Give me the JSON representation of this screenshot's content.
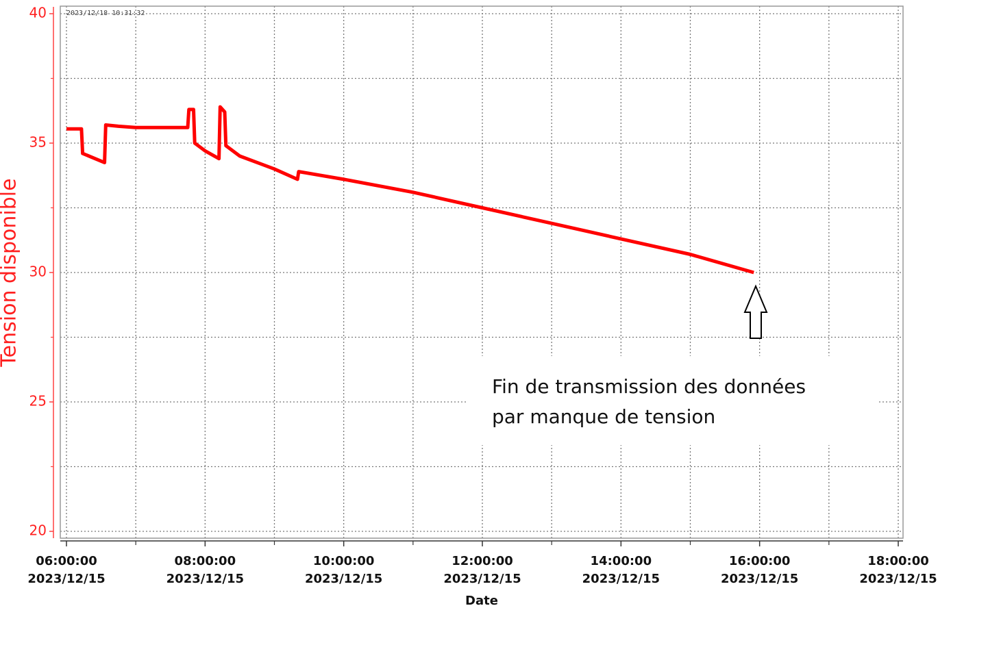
{
  "chart_data": {
    "type": "line",
    "timestamp": "2023/12/18 10:31:32",
    "ylabel": "Tension disponible",
    "xlabel": "Date",
    "annotation": [
      "Fin de transmission des données",
      "par manque de tension"
    ],
    "x": [
      "2023/12/15 06:00:00",
      "2023/12/15 06:13:00",
      "2023/12/15 06:14:00",
      "2023/12/15 06:33:00",
      "2023/12/15 06:34:00",
      "2023/12/15 06:45:00",
      "2023/12/15 07:00:00",
      "2023/12/15 07:45:00",
      "2023/12/15 07:46:00",
      "2023/12/15 07:50:00",
      "2023/12/15 07:51:00",
      "2023/12/15 08:00:00",
      "2023/12/15 08:12:00",
      "2023/12/15 08:13:00",
      "2023/12/15 08:17:00",
      "2023/12/15 08:18:00",
      "2023/12/15 08:30:00",
      "2023/12/15 09:00:00",
      "2023/12/15 09:20:00",
      "2023/12/15 09:21:00",
      "2023/12/15 10:00:00",
      "2023/12/15 11:00:00",
      "2023/12/15 12:00:00",
      "2023/12/15 13:00:00",
      "2023/12/15 14:00:00",
      "2023/12/15 15:00:00",
      "2023/12/15 15:55:00"
    ],
    "series": [
      {
        "name": "Tension disponible",
        "color": "#ff0000",
        "values": [
          35.55,
          35.55,
          34.6,
          34.25,
          35.7,
          35.65,
          35.6,
          35.6,
          36.3,
          36.3,
          35.0,
          34.7,
          34.4,
          36.4,
          36.2,
          34.9,
          34.5,
          34.0,
          33.6,
          33.9,
          33.6,
          33.1,
          32.5,
          31.9,
          31.3,
          30.7,
          30.0
        ]
      }
    ],
    "xlim": [
      "2023/12/15 06:00:00",
      "2023/12/15 18:00:00"
    ],
    "xticks": [
      {
        "value": "2023/12/15 06:00:00",
        "label": [
          "06:00:00",
          "2023/12/15"
        ]
      },
      {
        "value": "2023/12/15 08:00:00",
        "label": [
          "08:00:00",
          "2023/12/15"
        ]
      },
      {
        "value": "2023/12/15 10:00:00",
        "label": [
          "10:00:00",
          "2023/12/15"
        ]
      },
      {
        "value": "2023/12/15 12:00:00",
        "label": [
          "12:00:00",
          "2023/12/15"
        ]
      },
      {
        "value": "2023/12/15 14:00:00",
        "label": [
          "14:00:00",
          "2023/12/15"
        ]
      },
      {
        "value": "2023/12/15 16:00:00",
        "label": [
          "16:00:00",
          "2023/12/15"
        ]
      },
      {
        "value": "2023/12/15 18:00:00",
        "label": [
          "18:00:00",
          "2023/12/15"
        ]
      }
    ],
    "xminorticks": [
      "2023/12/15 07:00:00",
      "2023/12/15 09:00:00",
      "2023/12/15 11:00:00",
      "2023/12/15 13:00:00",
      "2023/12/15 15:00:00",
      "2023/12/15 17:00:00"
    ],
    "ylim": [
      20,
      40
    ],
    "yticks": [
      20,
      25,
      30,
      35,
      40
    ],
    "yminorticks": [
      22.5,
      27.5,
      32.5,
      37.5
    ],
    "grid": true
  }
}
